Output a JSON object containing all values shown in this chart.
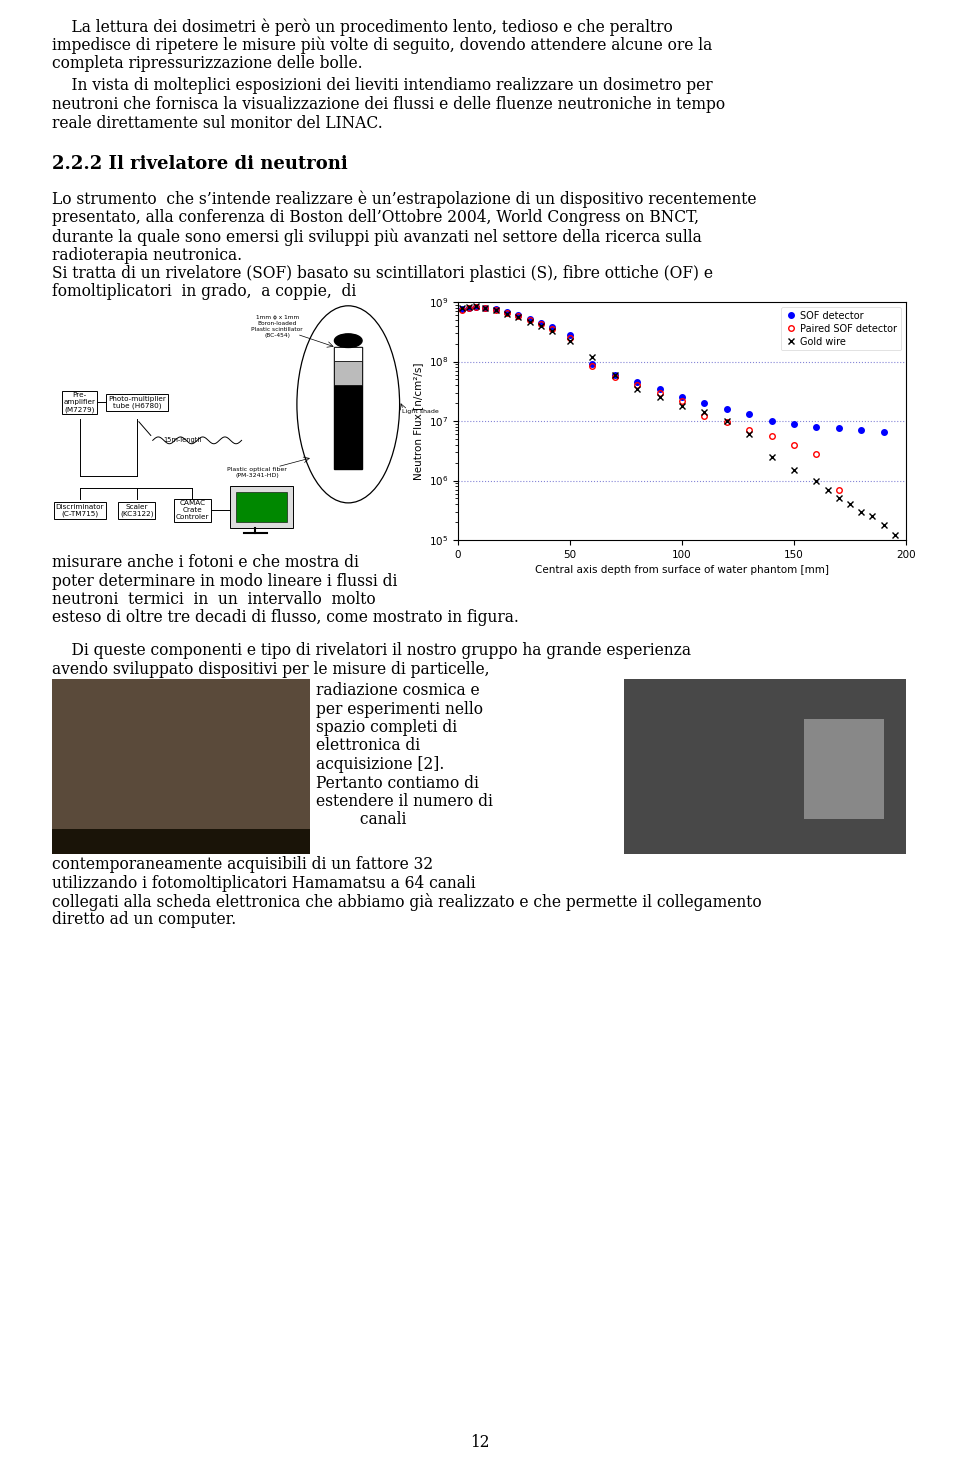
{
  "page_bg": "#ffffff",
  "text_color": "#000000",
  "page_number": "12",
  "plot_xlabel": "Central axis depth from surface of water phantom [mm]",
  "plot_ylabel": "Neutron Flux [n/cm²/s]",
  "sof_x": [
    2,
    5,
    8,
    12,
    17,
    22,
    27,
    32,
    37,
    42,
    50,
    60,
    70,
    80,
    90,
    100,
    110,
    120,
    130,
    140,
    150,
    160,
    170,
    180,
    190
  ],
  "sof_y": [
    750000000.0,
    800000000.0,
    830000000.0,
    800000000.0,
    750000000.0,
    680000000.0,
    600000000.0,
    520000000.0,
    450000000.0,
    380000000.0,
    280000000.0,
    90000000.0,
    60000000.0,
    45000000.0,
    35000000.0,
    25000000.0,
    20000000.0,
    16000000.0,
    13000000.0,
    10000000.0,
    9000000.0,
    8000000.0,
    7500000.0,
    7000000.0,
    6500000.0
  ],
  "paired_x": [
    2,
    5,
    8,
    12,
    17,
    22,
    27,
    32,
    37,
    42,
    50,
    60,
    70,
    80,
    90,
    100,
    110,
    120,
    130,
    140,
    150,
    160,
    170
  ],
  "paired_y": [
    720000000.0,
    780000000.0,
    810000000.0,
    780000000.0,
    720000000.0,
    650000000.0,
    580000000.0,
    500000000.0,
    420000000.0,
    350000000.0,
    250000000.0,
    85000000.0,
    55000000.0,
    40000000.0,
    30000000.0,
    22000000.0,
    12000000.0,
    9500000.0,
    7000000.0,
    5500000.0,
    4000000.0,
    2800000.0,
    700000.0
  ],
  "gold_x": [
    2,
    5,
    8,
    12,
    17,
    22,
    27,
    32,
    37,
    42,
    50,
    60,
    70,
    80,
    90,
    100,
    110,
    120,
    130,
    140,
    150,
    160,
    165,
    170,
    175,
    180,
    185,
    190,
    195
  ],
  "gold_y": [
    780000000.0,
    820000000.0,
    850000000.0,
    800000000.0,
    720000000.0,
    630000000.0,
    560000000.0,
    470000000.0,
    400000000.0,
    330000000.0,
    220000000.0,
    120000000.0,
    60000000.0,
    35000000.0,
    25000000.0,
    18000000.0,
    14000000.0,
    10000000.0,
    6000000.0,
    2500000.0,
    1500000.0,
    1000000.0,
    700000.0,
    500000.0,
    400000.0,
    300000.0,
    250000.0,
    180000.0,
    120000.0
  ]
}
